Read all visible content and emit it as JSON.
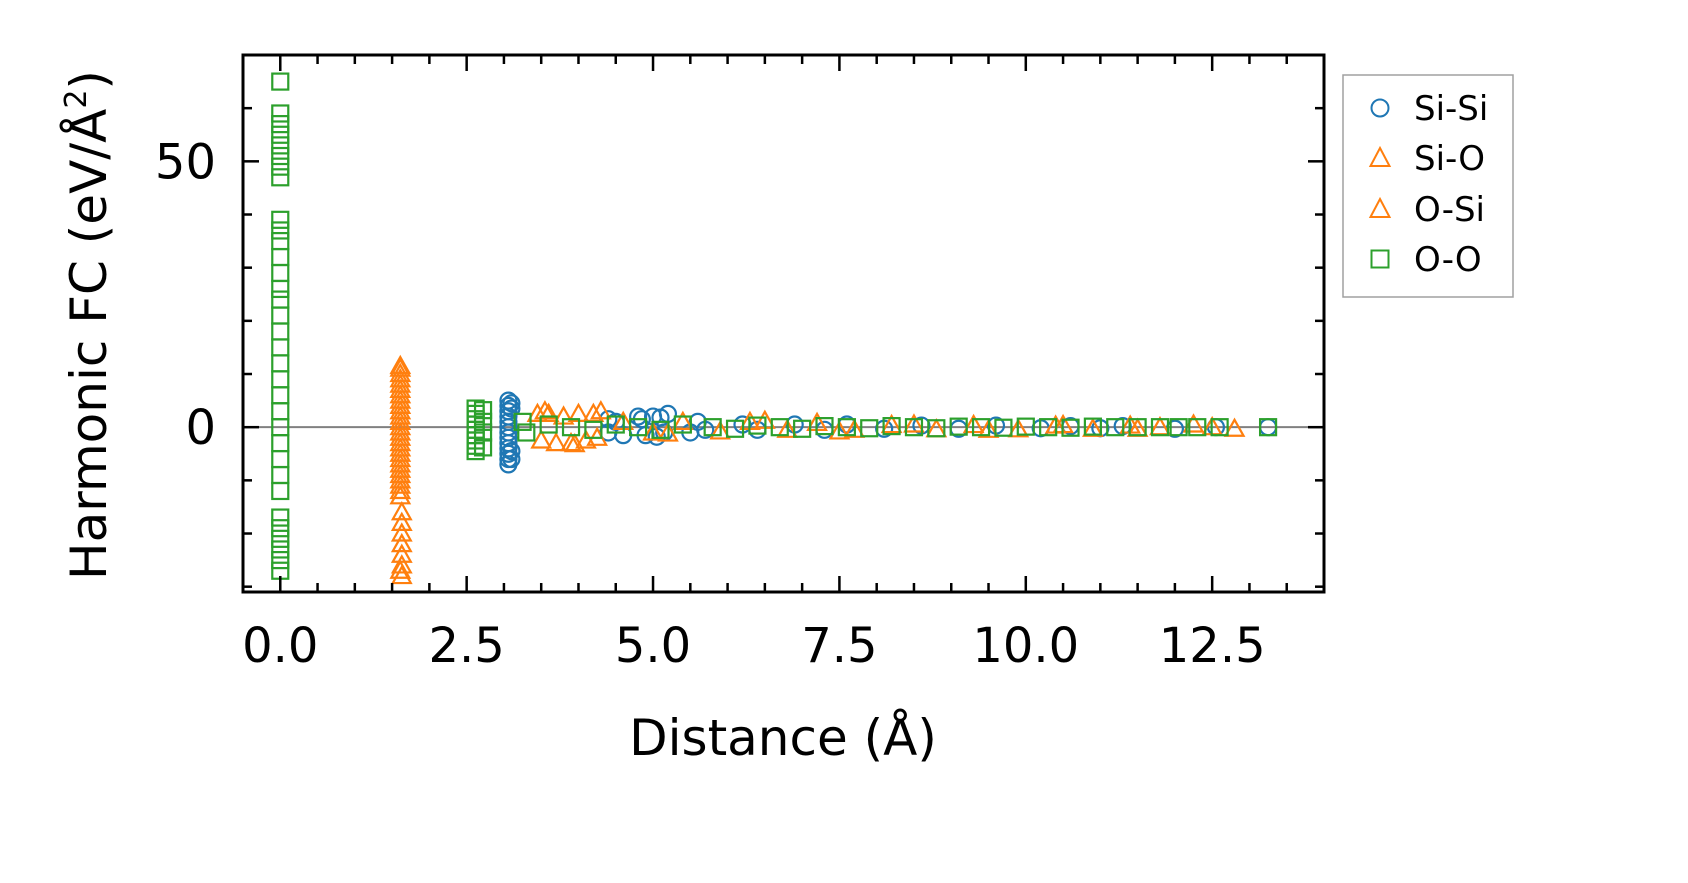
{
  "chart_data": {
    "type": "scatter",
    "title": "",
    "xlabel": "Distance (Å)",
    "ylabel_main": "Harmonic FC (eV/Å",
    "ylabel_sup": "2",
    "ylabel_close": ")",
    "xlim": [
      -0.5,
      14.0
    ],
    "ylim": [
      -31,
      70
    ],
    "x_ticks": [
      0.0,
      2.5,
      5.0,
      7.5,
      10.0,
      12.5
    ],
    "x_tick_labels": [
      "0.0",
      "2.5",
      "5.0",
      "7.5",
      "10.0",
      "12.5"
    ],
    "y_ticks": [
      0,
      50
    ],
    "y_tick_labels": [
      "0",
      "50"
    ],
    "zero_line": true,
    "grid": false,
    "legend_position": "outside-right-top",
    "colors": {
      "si_si": "#1f77b4",
      "si_o": "#ff7f0e",
      "o_si": "#ff7f0e",
      "o_o": "#2ca02c",
      "zero_line": "#808080"
    },
    "series": [
      {
        "name": "Si-Si",
        "marker": "circle",
        "color": "#1f77b4",
        "points": [
          [
            3.06,
            5
          ],
          [
            3.06,
            4
          ],
          [
            3.06,
            3
          ],
          [
            3.06,
            2
          ],
          [
            3.06,
            1
          ],
          [
            3.06,
            0
          ],
          [
            3.06,
            -1
          ],
          [
            3.06,
            -2
          ],
          [
            3.06,
            -3
          ],
          [
            3.06,
            -4
          ],
          [
            3.06,
            -5
          ],
          [
            3.06,
            -6
          ],
          [
            3.06,
            -7
          ],
          [
            3.1,
            4.5
          ],
          [
            3.1,
            3.5
          ],
          [
            3.1,
            -4.5
          ],
          [
            3.1,
            -6
          ],
          [
            4.4,
            1.5
          ],
          [
            4.4,
            -1
          ],
          [
            4.5,
            1
          ],
          [
            4.6,
            -1.5
          ],
          [
            4.8,
            2
          ],
          [
            4.85,
            1.5
          ],
          [
            4.9,
            -1.5
          ],
          [
            5.0,
            2
          ],
          [
            5.05,
            -1.8
          ],
          [
            5.1,
            1.8
          ],
          [
            5.15,
            -1
          ],
          [
            5.2,
            2.5
          ],
          [
            5.5,
            -1
          ],
          [
            5.6,
            1
          ],
          [
            5.7,
            -0.5
          ],
          [
            6.2,
            0.5
          ],
          [
            6.4,
            -0.5
          ],
          [
            6.9,
            0.5
          ],
          [
            7.3,
            -0.5
          ],
          [
            7.6,
            0.5
          ],
          [
            8.1,
            -0.3
          ],
          [
            8.6,
            0.3
          ],
          [
            9.1,
            -0.3
          ],
          [
            9.6,
            0.3
          ],
          [
            10.2,
            -0.2
          ],
          [
            10.6,
            0.2
          ],
          [
            11.0,
            -0.2
          ],
          [
            11.3,
            0.2
          ],
          [
            12.0,
            -0.3
          ],
          [
            12.55,
            0.0
          ],
          [
            13.25,
            0.0
          ]
        ]
      },
      {
        "name": "Si-O",
        "marker": "triangle",
        "color": "#ff7f0e",
        "points": [
          [
            1.61,
            11
          ],
          [
            1.61,
            10
          ],
          [
            1.61,
            9
          ],
          [
            1.61,
            8
          ],
          [
            1.61,
            7
          ],
          [
            1.61,
            6
          ],
          [
            1.61,
            5
          ],
          [
            1.61,
            4
          ],
          [
            1.61,
            3
          ],
          [
            1.61,
            2
          ],
          [
            1.61,
            1
          ],
          [
            1.61,
            0
          ],
          [
            1.61,
            -1
          ],
          [
            1.61,
            -2
          ],
          [
            1.61,
            -3
          ],
          [
            1.61,
            -4
          ],
          [
            1.61,
            -5
          ],
          [
            1.61,
            -6
          ],
          [
            1.61,
            -7
          ],
          [
            1.61,
            -8
          ],
          [
            1.61,
            -9
          ],
          [
            1.61,
            -10
          ],
          [
            1.61,
            -11
          ],
          [
            1.61,
            -12
          ],
          [
            1.61,
            -13
          ],
          [
            1.63,
            -16
          ],
          [
            1.63,
            -18
          ],
          [
            1.63,
            -20
          ],
          [
            1.63,
            -22
          ],
          [
            1.63,
            -24
          ],
          [
            1.63,
            -26
          ],
          [
            1.63,
            -28
          ],
          [
            3.45,
            2.5
          ],
          [
            3.5,
            -2.5
          ],
          [
            3.6,
            2.5
          ],
          [
            3.7,
            -3
          ],
          [
            3.8,
            2
          ],
          [
            3.9,
            -3
          ],
          [
            4.0,
            2.5
          ],
          [
            4.1,
            -2.5
          ],
          [
            4.2,
            2.5
          ],
          [
            4.25,
            -2
          ],
          [
            4.6,
            1
          ],
          [
            5.0,
            -1
          ],
          [
            5.4,
            1
          ],
          [
            5.9,
            -0.8
          ],
          [
            6.3,
            1
          ],
          [
            6.8,
            -0.5
          ],
          [
            7.2,
            0.8
          ],
          [
            7.7,
            -0.5
          ],
          [
            8.2,
            0.4
          ],
          [
            8.8,
            -0.4
          ],
          [
            9.3,
            0.4
          ],
          [
            9.9,
            -0.4
          ],
          [
            10.4,
            0.3
          ],
          [
            10.9,
            -0.3
          ],
          [
            11.4,
            0.3
          ],
          [
            11.8,
            0.0
          ]
        ]
      },
      {
        "name": "O-Si",
        "marker": "triangle",
        "color": "#ff7f0e",
        "points": [
          [
            1.61,
            11.5
          ],
          [
            1.61,
            -27
          ],
          [
            3.55,
            3
          ],
          [
            3.95,
            -3.2
          ],
          [
            4.3,
            3
          ],
          [
            5.2,
            -1.2
          ],
          [
            6.5,
            1.2
          ],
          [
            7.5,
            -0.8
          ],
          [
            8.5,
            0.5
          ],
          [
            9.5,
            -0.5
          ],
          [
            10.5,
            0.4
          ],
          [
            11.5,
            -0.3
          ],
          [
            12.25,
            0.5
          ],
          [
            12.5,
            0.0
          ],
          [
            12.8,
            -0.3
          ]
        ]
      },
      {
        "name": "O-O",
        "marker": "square",
        "color": "#2ca02c",
        "points": [
          [
            0.0,
            65
          ],
          [
            0.0,
            59
          ],
          [
            0.0,
            57
          ],
          [
            0.0,
            55
          ],
          [
            0.0,
            53
          ],
          [
            0.0,
            51
          ],
          [
            0.0,
            49
          ],
          [
            0.0,
            47
          ],
          [
            0.0,
            39
          ],
          [
            0.0,
            37
          ],
          [
            0.0,
            35
          ],
          [
            0.0,
            32
          ],
          [
            0.0,
            29
          ],
          [
            0.0,
            26
          ],
          [
            0.0,
            24
          ],
          [
            0.0,
            21
          ],
          [
            0.0,
            18
          ],
          [
            0.0,
            15
          ],
          [
            0.0,
            12
          ],
          [
            0.0,
            9
          ],
          [
            0.0,
            6
          ],
          [
            0.0,
            3
          ],
          [
            0.0,
            0
          ],
          [
            0.0,
            -3
          ],
          [
            0.0,
            -6
          ],
          [
            0.0,
            -9
          ],
          [
            0.0,
            -12
          ],
          [
            0.0,
            -17
          ],
          [
            0.0,
            -19
          ],
          [
            0.0,
            -21
          ],
          [
            0.0,
            -23
          ],
          [
            0.0,
            -25
          ],
          [
            0.0,
            -27
          ],
          [
            2.62,
            3.5
          ],
          [
            2.62,
            2.5
          ],
          [
            2.62,
            1.5
          ],
          [
            2.62,
            0.5
          ],
          [
            2.62,
            -0.5
          ],
          [
            2.62,
            -1.5
          ],
          [
            2.62,
            -2.5
          ],
          [
            2.62,
            -3.5
          ],
          [
            2.62,
            -4.5
          ],
          [
            2.72,
            3.2
          ],
          [
            2.72,
            1.0
          ],
          [
            2.72,
            -1.0
          ],
          [
            2.72,
            -3.8
          ],
          [
            3.25,
            1
          ],
          [
            3.3,
            -1
          ],
          [
            3.6,
            0.5
          ],
          [
            3.9,
            0
          ],
          [
            4.2,
            -0.5
          ],
          [
            4.5,
            0.5
          ],
          [
            4.8,
            0
          ],
          [
            5.1,
            -0.5
          ],
          [
            5.4,
            0.5
          ],
          [
            5.8,
            0
          ],
          [
            6.1,
            -0.3
          ],
          [
            6.4,
            0.3
          ],
          [
            6.7,
            0
          ],
          [
            7.0,
            -0.3
          ],
          [
            7.3,
            0.2
          ],
          [
            7.6,
            0
          ],
          [
            7.9,
            -0.2
          ],
          [
            8.2,
            0.2
          ],
          [
            8.5,
            0
          ],
          [
            8.8,
            -0.2
          ],
          [
            9.1,
            0.1
          ],
          [
            9.4,
            0
          ],
          [
            9.7,
            -0.1
          ],
          [
            10.0,
            0.1
          ],
          [
            10.3,
            0
          ],
          [
            10.6,
            -0.1
          ],
          [
            10.9,
            0.1
          ],
          [
            11.2,
            0
          ],
          [
            11.5,
            0
          ],
          [
            11.8,
            0
          ],
          [
            12.05,
            0
          ],
          [
            12.3,
            0
          ],
          [
            12.6,
            0
          ],
          [
            13.25,
            0
          ]
        ]
      }
    ]
  }
}
